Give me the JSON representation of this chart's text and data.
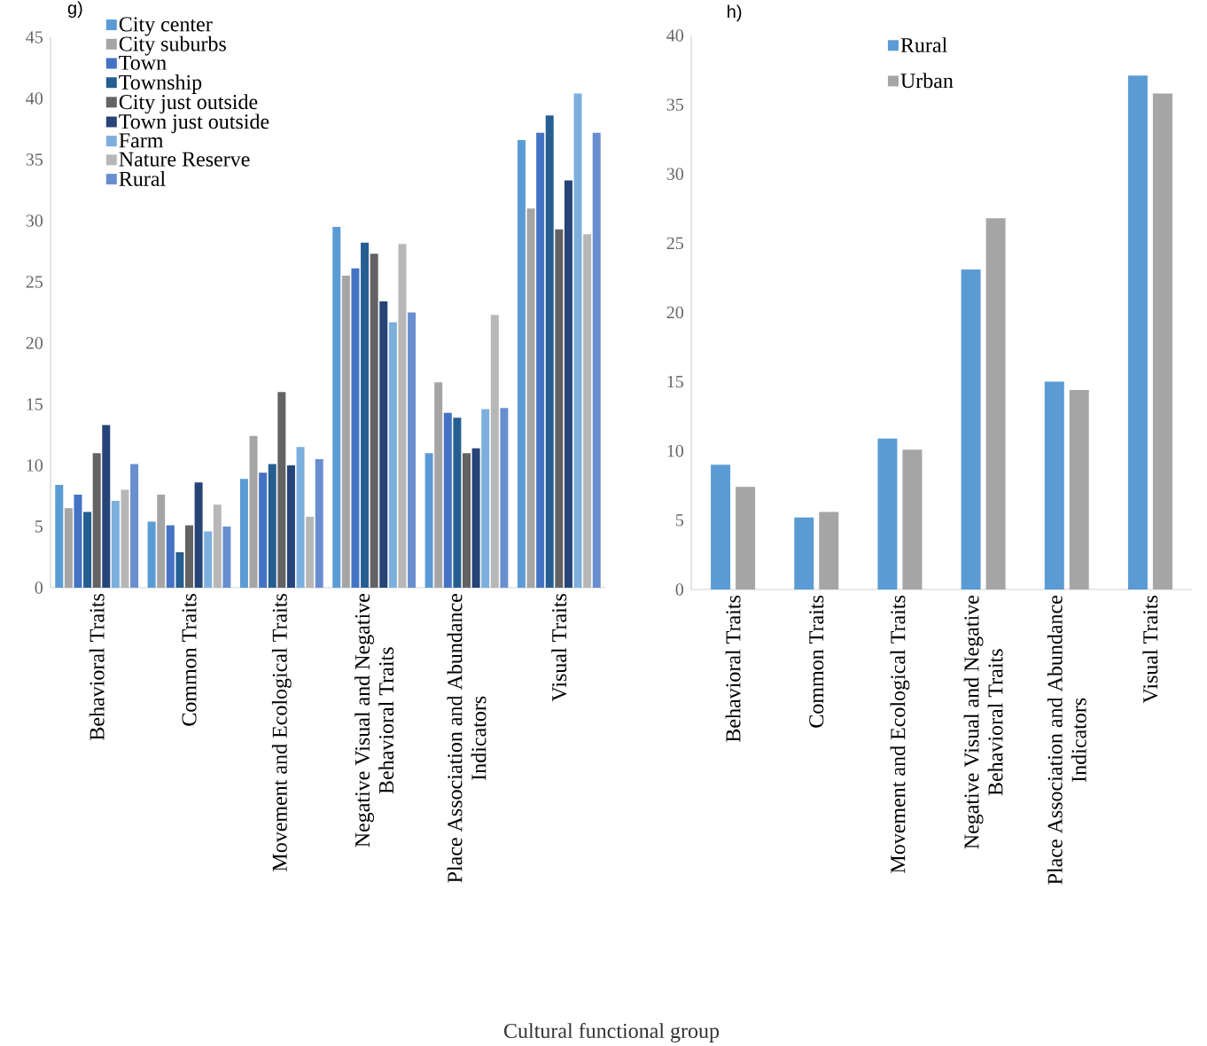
{
  "chart_data": [
    {
      "type": "bar",
      "annotations": [
        "g)"
      ],
      "xlabel": "Cultural functional group",
      "categories": [
        "Behavioral Traits",
        "Common Traits",
        "Movement and Ecological Traits",
        "Negative Visual and Negative Behavioral Traits",
        "Place Association and Abundance Indicators",
        "Visual Traits"
      ],
      "series": [
        {
          "name": "City center",
          "color": "#5b9bd5",
          "values": [
            8.4,
            5.4,
            8.9,
            29.5,
            11.0,
            36.6
          ]
        },
        {
          "name": "City suburbs",
          "color": "#a5a5a5",
          "values": [
            6.5,
            7.6,
            12.4,
            25.5,
            16.8,
            31.0
          ]
        },
        {
          "name": "Town",
          "color": "#4472c4",
          "values": [
            7.6,
            5.1,
            9.4,
            26.1,
            14.3,
            37.2
          ]
        },
        {
          "name": "Township",
          "color": "#255e91",
          "values": [
            6.2,
            2.9,
            10.1,
            28.2,
            13.9,
            38.6
          ]
        },
        {
          "name": "City just outside",
          "color": "#636363",
          "values": [
            11.0,
            5.1,
            16.0,
            27.3,
            11.0,
            29.3
          ]
        },
        {
          "name": "Town just outside",
          "color": "#264478",
          "values": [
            13.3,
            8.6,
            10.0,
            23.4,
            11.4,
            33.3
          ]
        },
        {
          "name": "Farm",
          "color": "#7cafdd",
          "values": [
            7.1,
            4.6,
            11.5,
            21.7,
            14.6,
            40.4
          ]
        },
        {
          "name": "Nature Reserve",
          "color": "#b7b7b7",
          "values": [
            8.0,
            6.8,
            5.8,
            28.1,
            22.3,
            28.9
          ]
        },
        {
          "name": "Rural",
          "color": "#698ed0",
          "values": [
            10.1,
            5.0,
            10.5,
            22.5,
            14.7,
            37.2
          ]
        }
      ],
      "ylim": [
        0,
        45
      ],
      "yticks": [
        0,
        5,
        10,
        15,
        20,
        25,
        30,
        35,
        40,
        45
      ],
      "legend": "top left"
    },
    {
      "type": "bar",
      "annotations": [
        "h)"
      ],
      "categories": [
        "Behavioral Traits",
        "Common Traits",
        "Movement and Ecological Traits",
        "Negative Visual and Negative Behavioral Traits",
        "Place Association and Abundance Indicators",
        "Visual Traits"
      ],
      "series": [
        {
          "name": "Rural",
          "color": "#5b9bd5",
          "values": [
            9.0,
            5.2,
            10.9,
            23.1,
            15.0,
            37.1
          ]
        },
        {
          "name": "Urban",
          "color": "#a5a5a5",
          "values": [
            7.4,
            5.6,
            10.1,
            26.8,
            14.4,
            35.8
          ]
        }
      ],
      "ylim": [
        0,
        40
      ],
      "yticks": [
        0,
        5,
        10,
        15,
        20,
        25,
        30,
        35,
        40
      ],
      "legend": "top"
    }
  ]
}
